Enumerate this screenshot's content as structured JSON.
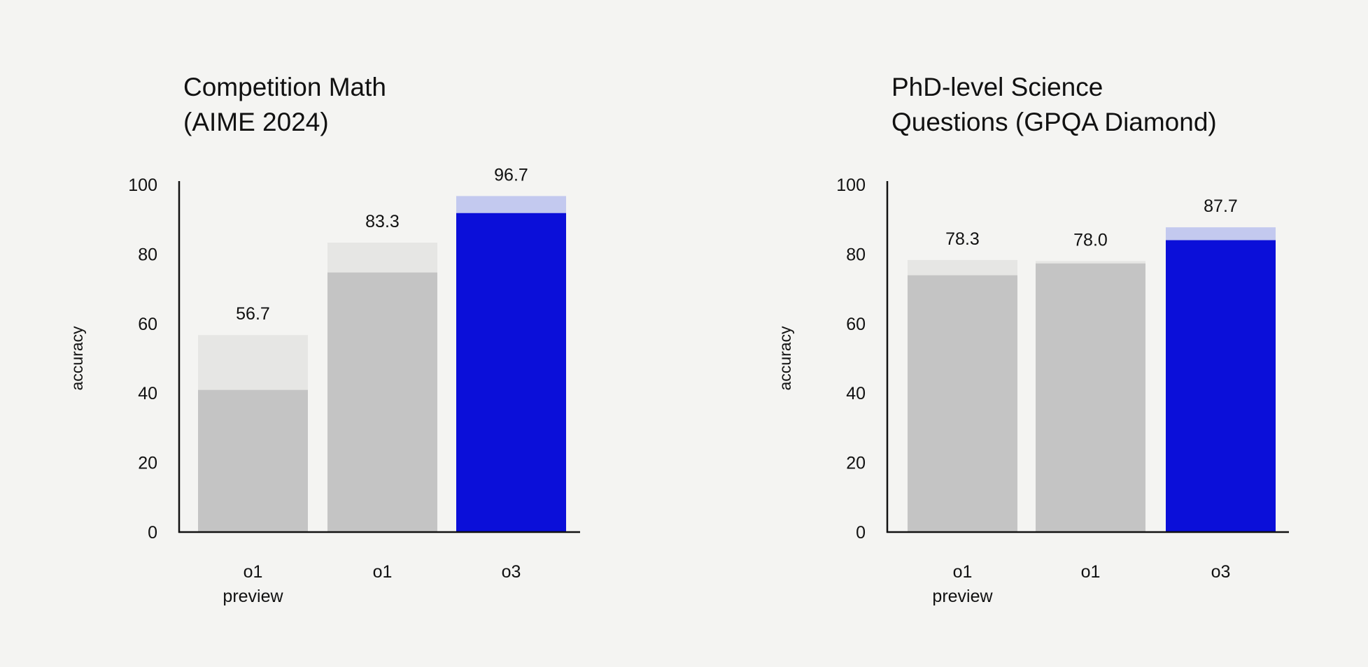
{
  "chart_data": [
    {
      "type": "bar",
      "title_lines": [
        "Competition Math",
        "(AIME 2024)"
      ],
      "ylabel": "accuracy",
      "ylim": [
        0,
        100
      ],
      "yticks": [
        0,
        20,
        40,
        60,
        80,
        100
      ],
      "categories": [
        [
          "o1",
          "preview"
        ],
        [
          "o1"
        ],
        [
          "o3"
        ]
      ],
      "values": [
        56.7,
        83.3,
        96.7
      ],
      "inner_values": [
        40.9,
        74.7,
        91.8
      ],
      "value_labels": [
        "56.7",
        "83.3",
        "96.7"
      ],
      "colors": {
        "gray_outer": "#e6e6e4",
        "gray_inner": "#c4c4c4",
        "blue_outer": "#c3c9ef",
        "blue_inner": "#0b0fd9"
      },
      "highlight_index": 2
    },
    {
      "type": "bar",
      "title_lines": [
        "PhD-level Science",
        "Questions (GPQA Diamond)"
      ],
      "ylabel": "accuracy",
      "ylim": [
        0,
        100
      ],
      "yticks": [
        0,
        20,
        40,
        60,
        80,
        100
      ],
      "categories": [
        [
          "o1",
          "preview"
        ],
        [
          "o1"
        ],
        [
          "o3"
        ]
      ],
      "values": [
        78.3,
        78.0,
        87.7
      ],
      "inner_values": [
        73.9,
        77.3,
        84.0
      ],
      "value_labels": [
        "78.3",
        "78.0",
        "87.7"
      ],
      "colors": {
        "gray_outer": "#e6e6e4",
        "gray_inner": "#c4c4c4",
        "blue_outer": "#c3c9ef",
        "blue_inner": "#0b0fd9"
      },
      "highlight_index": 2
    }
  ]
}
